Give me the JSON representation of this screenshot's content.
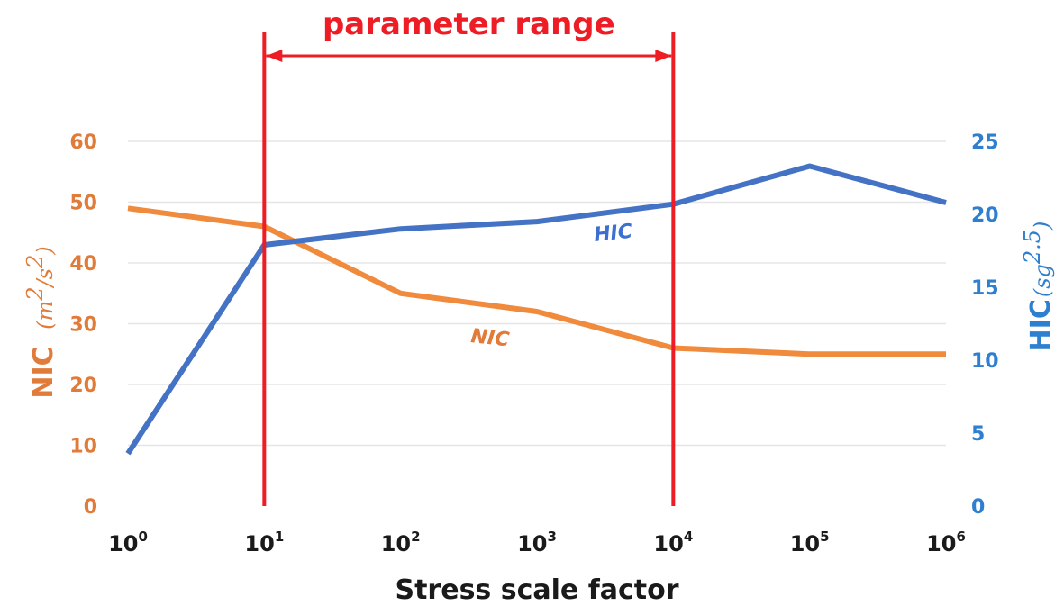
{
  "chart_data": {
    "type": "line",
    "xlabel": "Stress scale factor",
    "x_scale": "log10",
    "x": [
      0,
      1,
      2,
      3,
      4,
      5,
      6
    ],
    "x_tick_labels": [
      {
        "base": "10",
        "exp": "0"
      },
      {
        "base": "10",
        "exp": "1"
      },
      {
        "base": "10",
        "exp": "2"
      },
      {
        "base": "10",
        "exp": "3"
      },
      {
        "base": "10",
        "exp": "4"
      },
      {
        "base": "10",
        "exp": "5"
      },
      {
        "base": "10",
        "exp": "6"
      }
    ],
    "y_left": {
      "label": "NIC",
      "unit_base": "(m",
      "unit_sup1": "2",
      "unit_mid": "/s",
      "unit_sup2": "2",
      "unit_end": ")",
      "ylim": [
        0,
        60
      ],
      "ticks": [
        "0",
        "10",
        "20",
        "30",
        "40",
        "50",
        "60"
      ]
    },
    "y_right": {
      "label": "HIC",
      "unit_base": "(sg",
      "unit_sup": "2.5",
      "unit_end": ")",
      "ylim": [
        0,
        25
      ],
      "ticks": [
        "0",
        "5",
        "10",
        "15",
        "20",
        "25"
      ]
    },
    "grid": true,
    "series": [
      {
        "name": "NIC",
        "axis": "left",
        "color": "#f08a3c",
        "values": [
          49,
          46,
          35,
          32,
          26,
          25,
          25
        ]
      },
      {
        "name": "HIC",
        "axis": "right",
        "color": "#4472c4",
        "values": [
          3.6,
          17.9,
          19.0,
          19.5,
          20.7,
          23.3,
          20.8
        ]
      }
    ],
    "series_labels": [
      {
        "text": "HIC",
        "series": "HIC",
        "color": "#3b6fd1"
      },
      {
        "text": "NIC",
        "series": "NIC",
        "color": "#e07b39"
      }
    ],
    "annotation": {
      "text": "parameter range",
      "x_start": 1,
      "x_end": 4,
      "color": "#ee1c25"
    },
    "colors": {
      "left_axis": "#e07b39",
      "right_axis": "#2f7fd0",
      "range": "#ee1c25",
      "grid": "#e6e6e6"
    }
  }
}
